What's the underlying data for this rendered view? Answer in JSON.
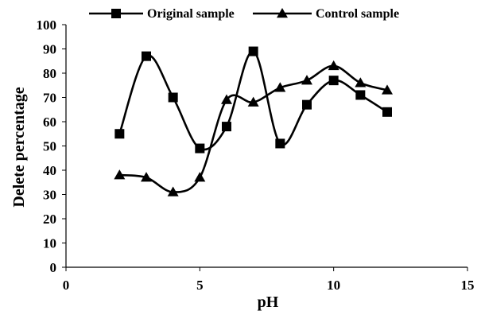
{
  "chart_data": {
    "type": "line",
    "xlabel": "pH",
    "ylabel": "Delete percentage",
    "xlim": [
      0,
      15
    ],
    "ylim": [
      0,
      100
    ],
    "xticks": [
      0,
      5,
      10,
      15
    ],
    "yticks": [
      0,
      10,
      20,
      30,
      40,
      50,
      60,
      70,
      80,
      90,
      100
    ],
    "grid": false,
    "legend_position": "top",
    "series": [
      {
        "name": "Original sample",
        "marker": "square",
        "color": "#000000",
        "x": [
          2,
          3,
          4,
          5,
          6,
          7,
          8,
          9,
          10,
          11,
          12
        ],
        "values": [
          55,
          87,
          70,
          49,
          58,
          89,
          51,
          67,
          77,
          71,
          64
        ]
      },
      {
        "name": "Control sample",
        "marker": "triangle",
        "color": "#000000",
        "x": [
          2,
          3,
          4,
          5,
          6,
          7,
          8,
          9,
          10,
          11,
          12
        ],
        "values": [
          38,
          37,
          31,
          37,
          69,
          68,
          74,
          77,
          83,
          76,
          73
        ]
      }
    ]
  }
}
